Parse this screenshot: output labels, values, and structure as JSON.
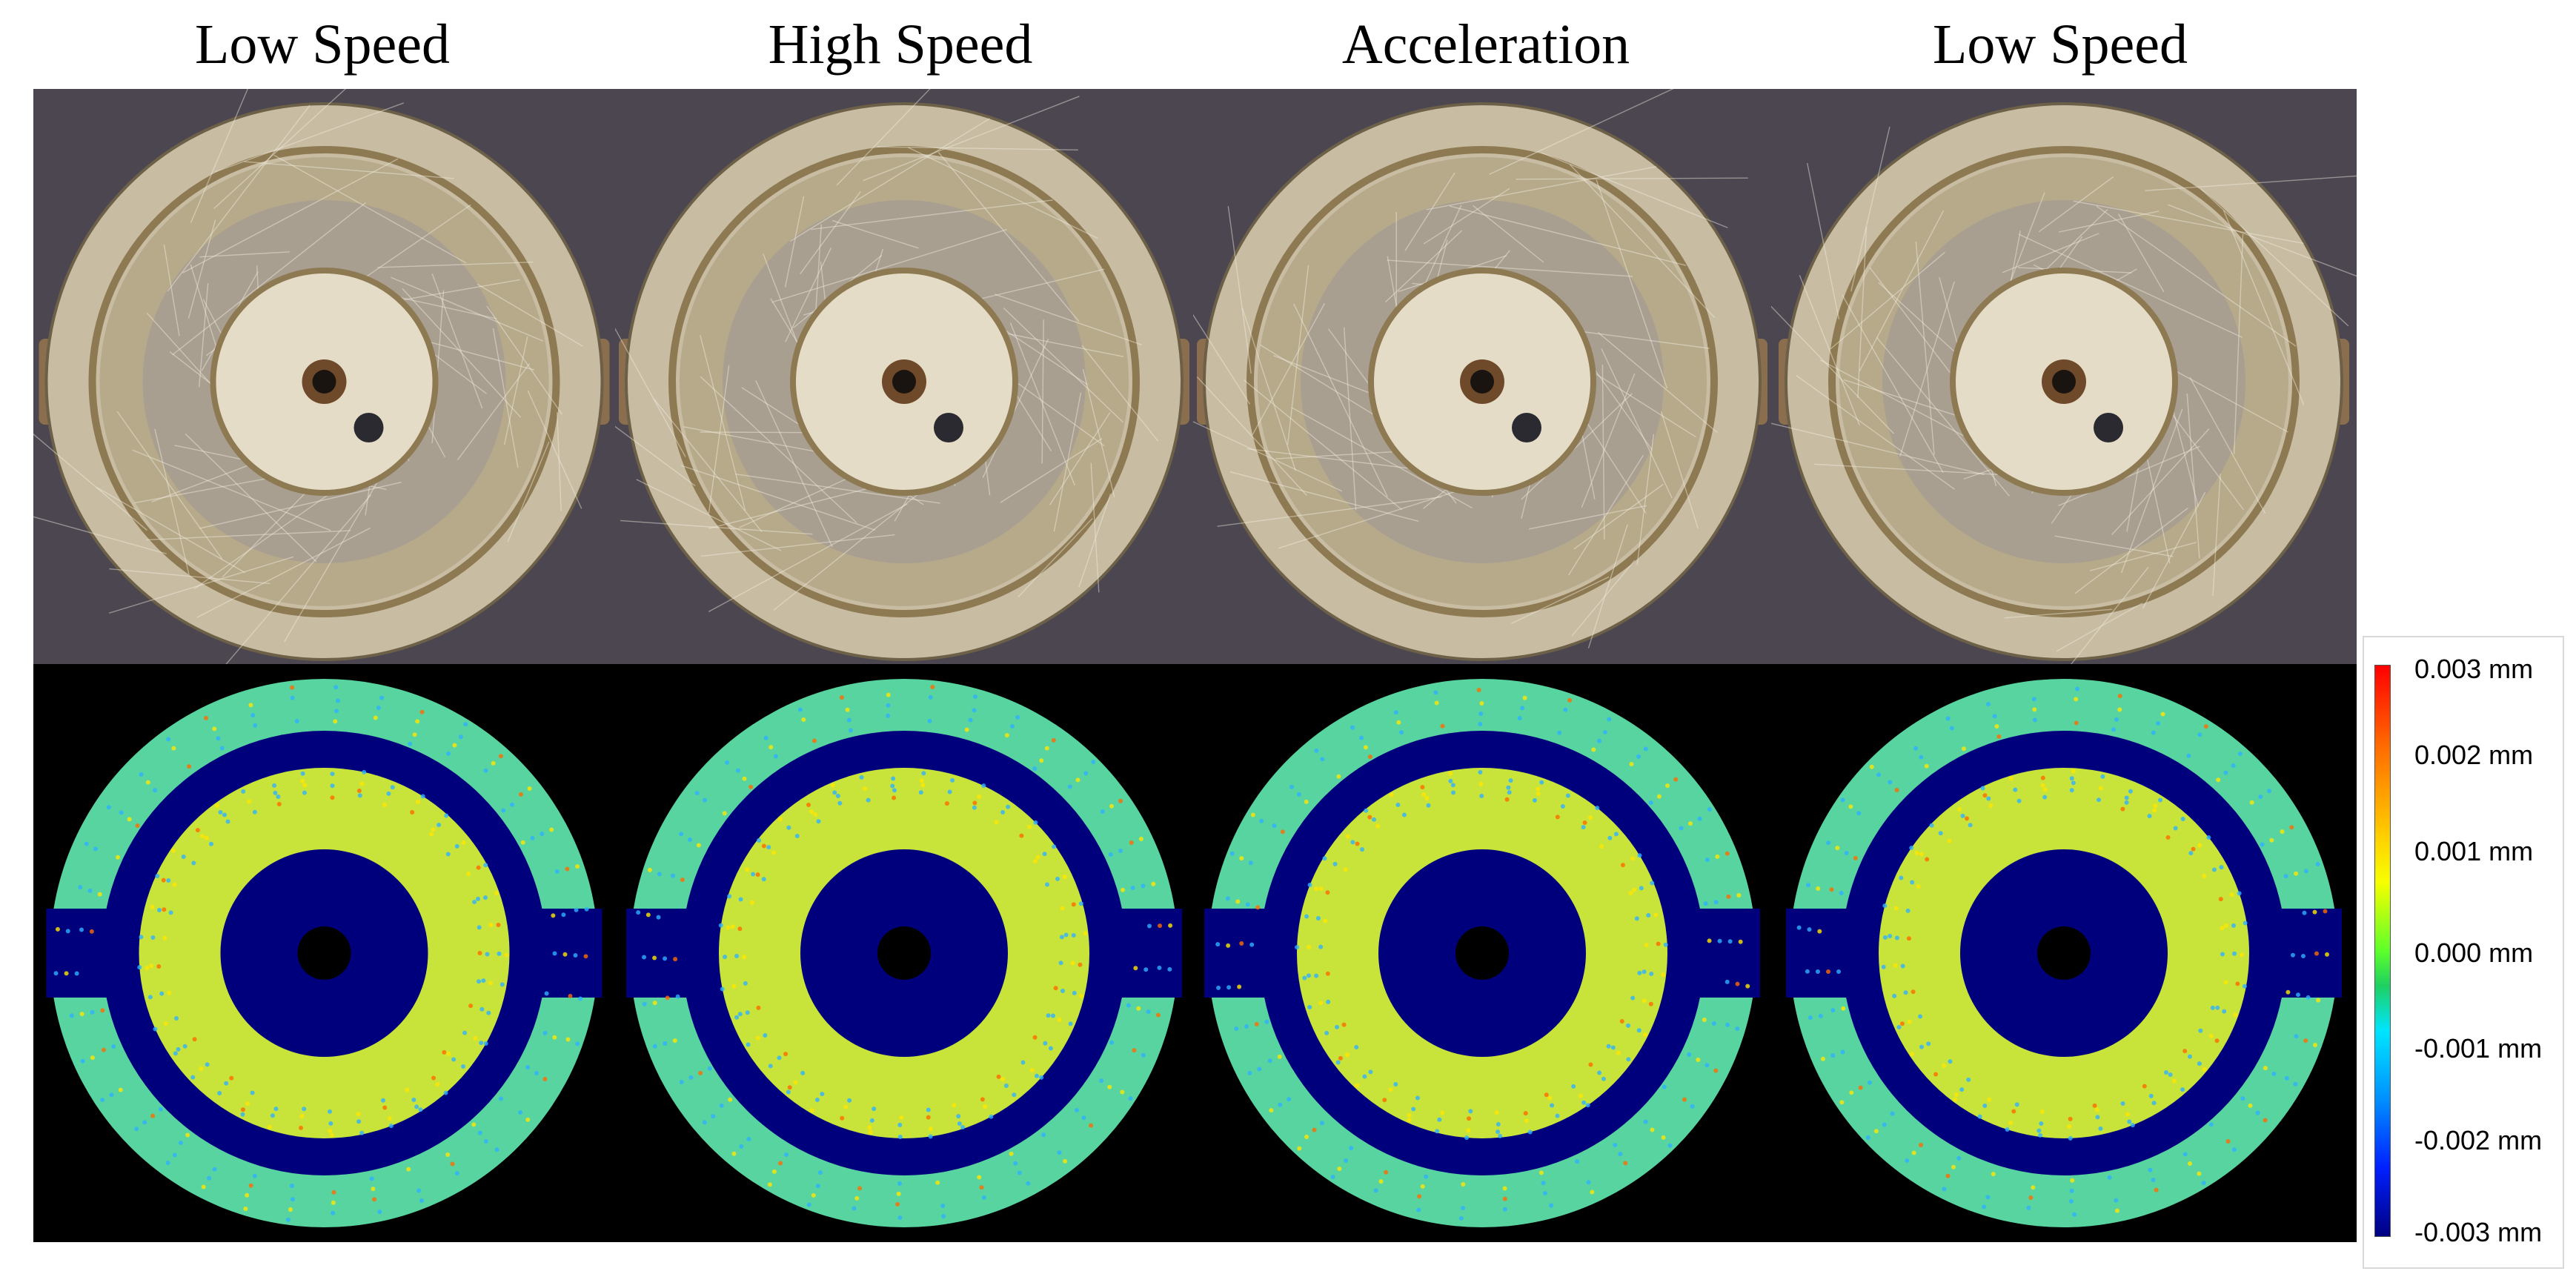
{
  "column_titles": [
    "Low Speed",
    "High Speed",
    "Acceleration",
    "Low Speed"
  ],
  "colorbar": {
    "labels": [
      "0.003 mm",
      "0.002 mm",
      "0.001 mm",
      "0.000 mm",
      "-0.001 mm",
      "-0.002 mm",
      "-0.003 mm"
    ],
    "colors": {
      "max": "#ff0000",
      "upper": "#ffd000",
      "mid": "#3cdc3c",
      "lower": "#00c8ff",
      "min": "#000080"
    }
  },
  "photo_colors": {
    "background": "#4b4650",
    "metal": "#c8bda3",
    "ring": "#a89a78",
    "hub": "#e4dcc6"
  },
  "heatmap_colors": {
    "background": "#000000",
    "groove": "#00007c",
    "outer_ring": "#58d4a0",
    "inner_ring": "#c8e43a",
    "hot_spot": "#ff6a00"
  }
}
